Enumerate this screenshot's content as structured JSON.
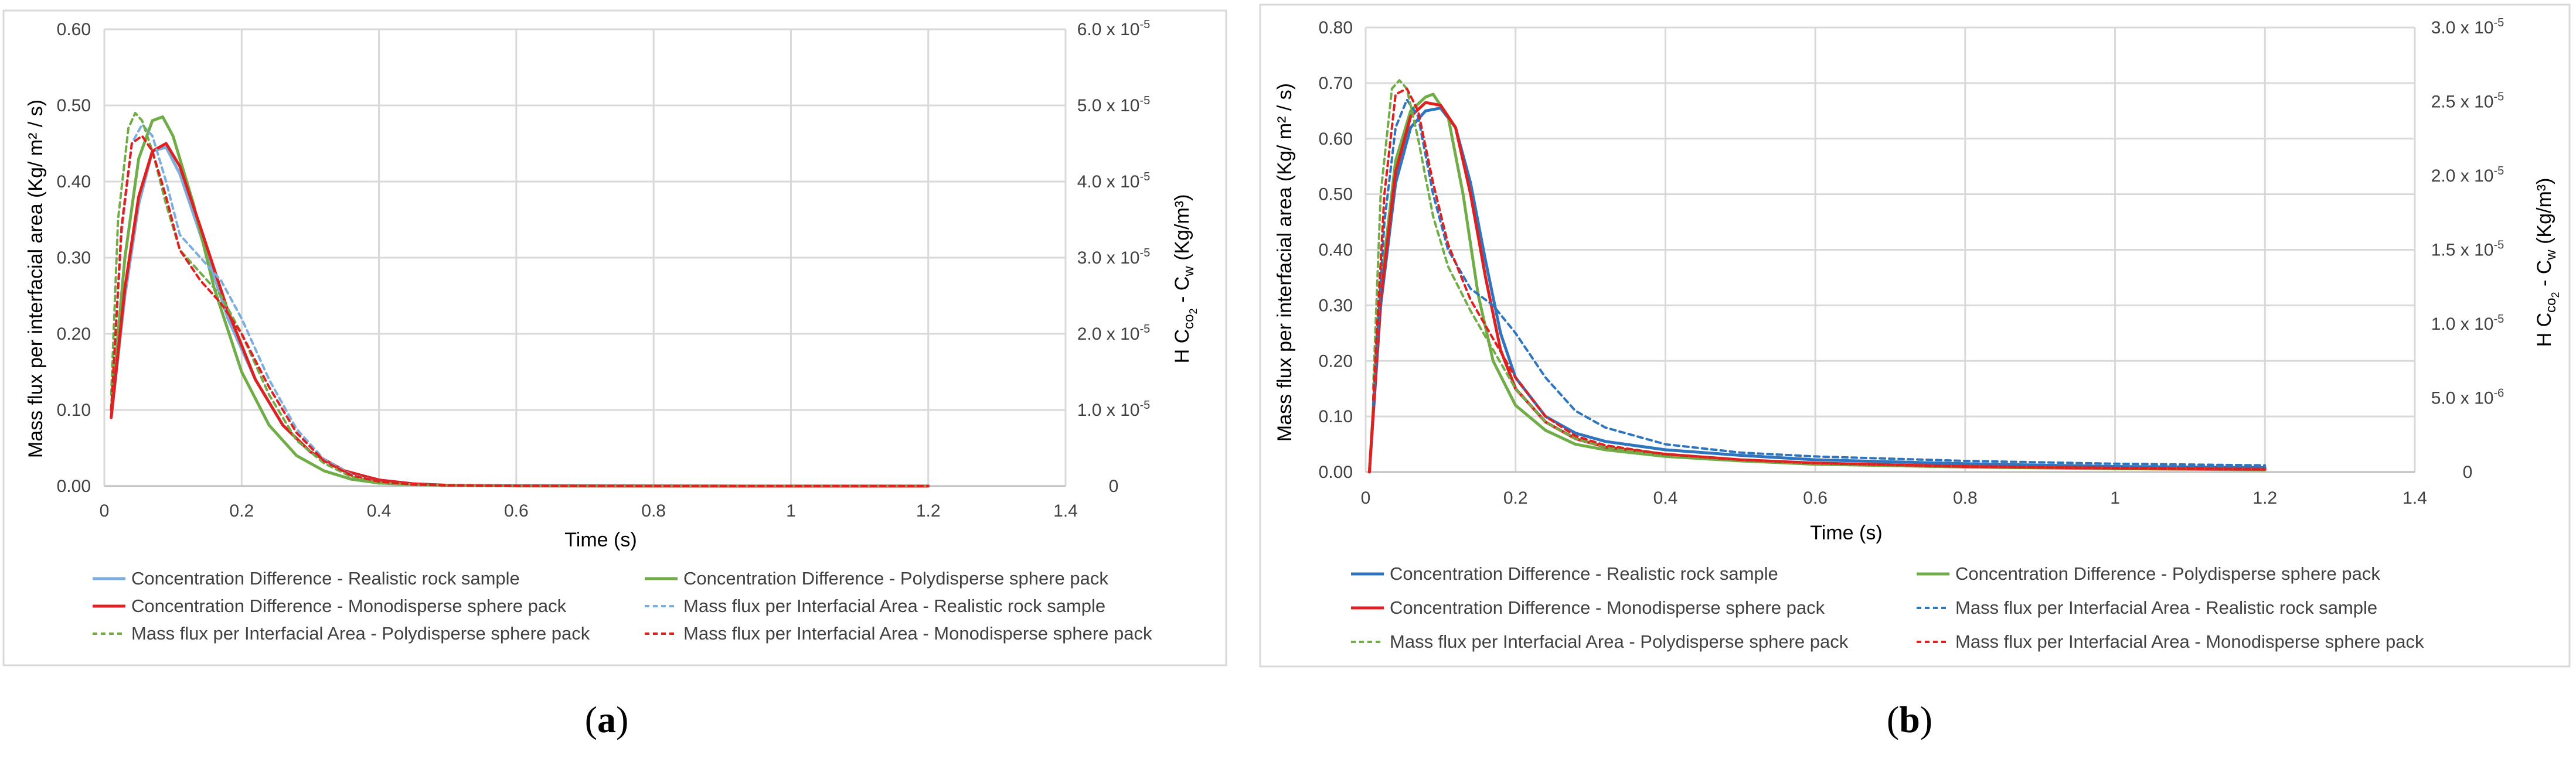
{
  "panels": [
    {
      "label_open": "(",
      "label_letter": "a",
      "label_close": ")"
    },
    {
      "label_open": "(",
      "label_letter": "b",
      "label_close": ")"
    }
  ],
  "colors": {
    "realistic_a": "#7aaede",
    "realistic_b": "#2e75c0",
    "polydisperse": "#70ad47",
    "monodisperse": "#e02020",
    "grid": "#d9d9d9"
  },
  "chart_data": [
    {
      "type": "line",
      "title": "",
      "xlabel": "Time (s)",
      "ylabel": "Mass flux per interfacial area (Kg/ m² / s)",
      "y2label": "H C_co2 - C_w (Kg/m³)",
      "y2label_parts": {
        "pre": "H C",
        "sub1": "co",
        "sub2": "2",
        "mid": " - C",
        "sub3": "w",
        "post": " (Kg/m³)"
      },
      "xlim": [
        0,
        1.4
      ],
      "ylim": [
        0,
        0.6
      ],
      "y2lim": [
        0,
        6e-05
      ],
      "x_ticks": [
        "0",
        "0.2",
        "0.4",
        "0.6",
        "0.8",
        "1",
        "1.2",
        "1.4"
      ],
      "y_ticks": [
        "0.00",
        "0.10",
        "0.20",
        "0.30",
        "0.40",
        "0.50",
        "0.60"
      ],
      "y2_ticks": [
        {
          "mant": "0",
          "exp": ""
        },
        {
          "mant": "1.0 x 10",
          "exp": "-5"
        },
        {
          "mant": "2.0 x 10",
          "exp": "-5"
        },
        {
          "mant": "3.0 x 10",
          "exp": "-5"
        },
        {
          "mant": "4.0 x 10",
          "exp": "-5"
        },
        {
          "mant": "5.0 x 10",
          "exp": "-5"
        },
        {
          "mant": "6.0 x 10",
          "exp": "-5"
        }
      ],
      "legend": [
        "Concentration Difference - Realistic rock sample",
        "Concentration Difference - Polydisperse sphere pack",
        "Concentration Difference - Monodisperse sphere pack",
        "Mass flux per Interfacial Area - Realistic rock sample",
        "Mass flux per Interfacial Area - Polydisperse sphere pack",
        "Mass flux per Interfacial Area - Monodisperse sphere pack"
      ],
      "series": [
        {
          "name": "Concentration Difference - Realistic rock sample",
          "color_key": "realistic_a",
          "dash": false,
          "x": [
            0.01,
            0.03,
            0.05,
            0.07,
            0.09,
            0.11,
            0.14,
            0.18,
            0.22,
            0.26,
            0.3,
            0.35,
            0.4,
            0.45,
            0.5,
            0.6,
            0.8,
            1.0,
            1.2
          ],
          "y": [
            0.09,
            0.25,
            0.37,
            0.44,
            0.445,
            0.41,
            0.33,
            0.22,
            0.14,
            0.08,
            0.045,
            0.02,
            0.008,
            0.003,
            0.001,
            0.0003,
            0.0001,
            0.0,
            0.0
          ]
        },
        {
          "name": "Concentration Difference - Polydisperse sphere pack",
          "color_key": "polydisperse",
          "dash": false,
          "x": [
            0.01,
            0.03,
            0.05,
            0.07,
            0.085,
            0.1,
            0.13,
            0.16,
            0.2,
            0.24,
            0.28,
            0.32,
            0.36,
            0.4,
            0.45,
            0.5,
            0.6,
            0.8,
            1.0,
            1.2
          ],
          "y": [
            0.1,
            0.3,
            0.43,
            0.48,
            0.485,
            0.46,
            0.37,
            0.26,
            0.15,
            0.08,
            0.04,
            0.02,
            0.009,
            0.004,
            0.002,
            0.001,
            0.0003,
            0.0001,
            0.0,
            0.0
          ]
        },
        {
          "name": "Concentration Difference - Monodisperse sphere pack",
          "color_key": "monodisperse",
          "dash": false,
          "x": [
            0.01,
            0.03,
            0.05,
            0.07,
            0.09,
            0.11,
            0.14,
            0.18,
            0.22,
            0.26,
            0.3,
            0.35,
            0.4,
            0.45,
            0.5,
            0.6,
            0.8,
            1.0,
            1.2
          ],
          "y": [
            0.09,
            0.26,
            0.38,
            0.44,
            0.45,
            0.42,
            0.34,
            0.23,
            0.14,
            0.08,
            0.045,
            0.02,
            0.008,
            0.003,
            0.001,
            0.0003,
            0.0001,
            0.0,
            0.0
          ]
        },
        {
          "name": "Mass flux per Interfacial Area - Realistic rock sample",
          "color_key": "realistic_a",
          "dash": true,
          "x": [
            0.01,
            0.025,
            0.04,
            0.055,
            0.07,
            0.09,
            0.11,
            0.14,
            0.17,
            0.2,
            0.24,
            0.28,
            0.32,
            0.36,
            0.4,
            0.45,
            0.5,
            0.6,
            0.8,
            1.0,
            1.2
          ],
          "y": [
            0.1,
            0.33,
            0.45,
            0.475,
            0.46,
            0.4,
            0.33,
            0.3,
            0.27,
            0.22,
            0.14,
            0.075,
            0.035,
            0.015,
            0.006,
            0.002,
            0.001,
            0.0003,
            0.0001,
            0.0,
            0.0
          ]
        },
        {
          "name": "Mass flux per Interfacial Area - Polydisperse sphere pack",
          "color_key": "polydisperse",
          "dash": true,
          "x": [
            0.01,
            0.02,
            0.035,
            0.045,
            0.055,
            0.07,
            0.09,
            0.11,
            0.14,
            0.17,
            0.2,
            0.24,
            0.28,
            0.32,
            0.36,
            0.4,
            0.45,
            0.5,
            0.6,
            0.8,
            1.0,
            1.2
          ],
          "y": [
            0.12,
            0.35,
            0.47,
            0.49,
            0.48,
            0.44,
            0.37,
            0.31,
            0.28,
            0.25,
            0.2,
            0.12,
            0.06,
            0.03,
            0.012,
            0.005,
            0.002,
            0.001,
            0.0003,
            0.0001,
            0.0,
            0.0
          ]
        },
        {
          "name": "Mass flux per Interfacial Area - Monodisperse sphere pack",
          "color_key": "monodisperse",
          "dash": true,
          "x": [
            0.01,
            0.025,
            0.04,
            0.055,
            0.07,
            0.09,
            0.11,
            0.14,
            0.17,
            0.2,
            0.24,
            0.28,
            0.32,
            0.36,
            0.4,
            0.45,
            0.5,
            0.6,
            0.8,
            1.0,
            1.2
          ],
          "y": [
            0.1,
            0.34,
            0.45,
            0.46,
            0.44,
            0.38,
            0.31,
            0.27,
            0.24,
            0.2,
            0.13,
            0.07,
            0.033,
            0.014,
            0.006,
            0.002,
            0.001,
            0.0003,
            0.0001,
            0.0,
            0.0
          ]
        }
      ]
    },
    {
      "type": "line",
      "title": "",
      "xlabel": "Time (s)",
      "ylabel": "Mass flux per interfacial area (Kg/ m² / s)",
      "y2label": "H C_co2 - C_w (Kg/m³)",
      "y2label_parts": {
        "pre": "H C",
        "sub1": "co",
        "sub2": "2",
        "mid": " - C",
        "sub3": "w",
        "post": " (Kg/m³)"
      },
      "xlim": [
        0,
        1.4
      ],
      "ylim": [
        0,
        0.8
      ],
      "y2lim": [
        0,
        3e-05
      ],
      "x_ticks": [
        "0",
        "0.2",
        "0.4",
        "0.6",
        "0.8",
        "1",
        "1.2",
        "1.4"
      ],
      "y_ticks": [
        "0.00",
        "0.10",
        "0.20",
        "0.30",
        "0.40",
        "0.50",
        "0.60",
        "0.70",
        "0.80"
      ],
      "y2_ticks": [
        {
          "mant": "0",
          "exp": ""
        },
        {
          "mant": "5.0 x 10",
          "exp": "-6"
        },
        {
          "mant": "1.0 x 10",
          "exp": "-5"
        },
        {
          "mant": "1.5 x 10",
          "exp": "-5"
        },
        {
          "mant": "2.0 x 10",
          "exp": "-5"
        },
        {
          "mant": "2.5 x 10",
          "exp": "-5"
        },
        {
          "mant": "3.0 x 10",
          "exp": "-5"
        }
      ],
      "legend": [
        "Concentration Difference - Realistic rock sample",
        "Concentration Difference - Polydisperse sphere pack",
        "Concentration Difference - Monodisperse sphere pack",
        "Mass flux per Interfacial Area - Realistic rock sample",
        "Mass flux per Interfacial Area - Polydisperse sphere pack",
        "Mass flux per Interfacial Area - Monodisperse sphere pack"
      ],
      "series": [
        {
          "name": "Concentration Difference - Realistic rock sample",
          "color_key": "realistic_b",
          "dash": false,
          "x": [
            0.005,
            0.02,
            0.04,
            0.06,
            0.08,
            0.1,
            0.12,
            0.14,
            0.16,
            0.18,
            0.2,
            0.24,
            0.28,
            0.32,
            0.4,
            0.5,
            0.6,
            0.8,
            1.0,
            1.2
          ],
          "y": [
            0.0,
            0.3,
            0.52,
            0.62,
            0.65,
            0.655,
            0.62,
            0.52,
            0.38,
            0.25,
            0.17,
            0.1,
            0.07,
            0.055,
            0.04,
            0.03,
            0.022,
            0.015,
            0.01,
            0.008
          ]
        },
        {
          "name": "Concentration Difference - Polydisperse sphere pack",
          "color_key": "polydisperse",
          "dash": false,
          "x": [
            0.005,
            0.02,
            0.04,
            0.06,
            0.08,
            0.09,
            0.11,
            0.13,
            0.15,
            0.17,
            0.2,
            0.24,
            0.28,
            0.32,
            0.4,
            0.5,
            0.6,
            0.8,
            1.0,
            1.2
          ],
          "y": [
            0.0,
            0.33,
            0.56,
            0.65,
            0.675,
            0.68,
            0.64,
            0.5,
            0.32,
            0.2,
            0.12,
            0.075,
            0.05,
            0.04,
            0.028,
            0.02,
            0.014,
            0.009,
            0.006,
            0.004
          ]
        },
        {
          "name": "Concentration Difference - Monodisperse sphere pack",
          "color_key": "monodisperse",
          "dash": false,
          "x": [
            0.005,
            0.02,
            0.04,
            0.06,
            0.08,
            0.1,
            0.12,
            0.14,
            0.16,
            0.18,
            0.2,
            0.24,
            0.28,
            0.32,
            0.4,
            0.5,
            0.6,
            0.8,
            1.0,
            1.2
          ],
          "y": [
            0.0,
            0.31,
            0.54,
            0.64,
            0.665,
            0.66,
            0.62,
            0.5,
            0.35,
            0.22,
            0.15,
            0.09,
            0.06,
            0.045,
            0.032,
            0.022,
            0.016,
            0.01,
            0.007,
            0.005
          ]
        },
        {
          "name": "Mass flux per Interfacial Area - Realistic rock sample",
          "color_key": "realistic_b",
          "dash": true,
          "x": [
            0.01,
            0.025,
            0.04,
            0.055,
            0.07,
            0.09,
            0.11,
            0.14,
            0.17,
            0.2,
            0.24,
            0.28,
            0.32,
            0.4,
            0.5,
            0.6,
            0.8,
            1.0,
            1.2
          ],
          "y": [
            0.12,
            0.45,
            0.62,
            0.67,
            0.64,
            0.5,
            0.4,
            0.33,
            0.3,
            0.25,
            0.17,
            0.11,
            0.08,
            0.05,
            0.035,
            0.028,
            0.02,
            0.015,
            0.012
          ]
        },
        {
          "name": "Mass flux per Interfacial Area - Polydisperse sphere pack",
          "color_key": "polydisperse",
          "dash": true,
          "x": [
            0.01,
            0.02,
            0.035,
            0.045,
            0.055,
            0.07,
            0.09,
            0.11,
            0.14,
            0.17,
            0.2,
            0.24,
            0.28,
            0.32,
            0.4,
            0.5,
            0.6,
            0.8,
            1.0,
            1.2
          ],
          "y": [
            0.15,
            0.5,
            0.69,
            0.705,
            0.69,
            0.6,
            0.46,
            0.37,
            0.29,
            0.22,
            0.15,
            0.09,
            0.06,
            0.045,
            0.03,
            0.02,
            0.015,
            0.01,
            0.007,
            0.005
          ]
        },
        {
          "name": "Mass flux per Interfacial Area - Monodisperse sphere pack",
          "color_key": "monodisperse",
          "dash": true,
          "x": [
            0.01,
            0.025,
            0.04,
            0.055,
            0.07,
            0.09,
            0.11,
            0.14,
            0.17,
            0.2,
            0.24,
            0.28,
            0.32,
            0.4,
            0.5,
            0.6,
            0.8,
            1.0,
            1.2
          ],
          "y": [
            0.13,
            0.5,
            0.68,
            0.69,
            0.65,
            0.52,
            0.41,
            0.31,
            0.24,
            0.17,
            0.1,
            0.065,
            0.048,
            0.032,
            0.022,
            0.016,
            0.01,
            0.007,
            0.005
          ]
        }
      ]
    }
  ]
}
